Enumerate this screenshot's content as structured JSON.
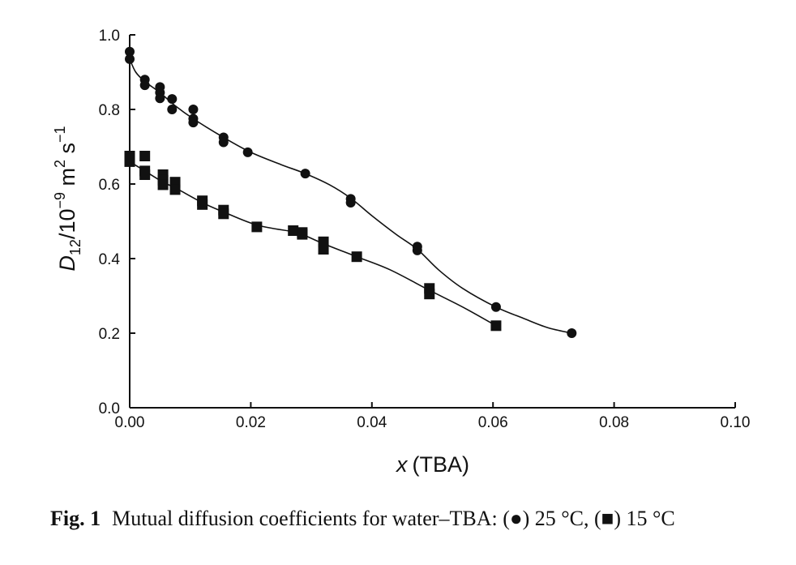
{
  "chart_data": {
    "type": "scatter",
    "xlabel_var": "x",
    "xlabel_rest": "(TBA)",
    "ylabel_var": "D",
    "ylabel_sub": "12",
    "ylabel_mid": "/10",
    "ylabel_exp1": "−9",
    "ylabel_m": " m",
    "ylabel_exp2": "2",
    "ylabel_s": " s",
    "ylabel_exp3": "−1",
    "xlim": [
      0,
      0.1
    ],
    "ylim": [
      0,
      1.0
    ],
    "x_ticks": [
      {
        "value": 0,
        "label": "0.00"
      },
      {
        "value": 0.02,
        "label": "0.02"
      },
      {
        "value": 0.04,
        "label": "0.04"
      },
      {
        "value": 0.06,
        "label": "0.06"
      },
      {
        "value": 0.08,
        "label": "0.08"
      },
      {
        "value": 0.1,
        "label": "0.10"
      }
    ],
    "y_ticks": [
      {
        "value": 0,
        "label": "0.0"
      },
      {
        "value": 0.2,
        "label": "0.2"
      },
      {
        "value": 0.4,
        "label": "0.4"
      },
      {
        "value": 0.6,
        "label": "0.6"
      },
      {
        "value": 0.8,
        "label": "0.8"
      },
      {
        "value": 1.0,
        "label": "1.0"
      }
    ],
    "grid": false,
    "series": [
      {
        "marker": "circle",
        "points": [
          [
            0.0,
            0.955
          ],
          [
            0.0,
            0.935
          ],
          [
            0.0025,
            0.88
          ],
          [
            0.0025,
            0.865
          ],
          [
            0.005,
            0.86
          ],
          [
            0.005,
            0.845
          ],
          [
            0.005,
            0.83
          ],
          [
            0.007,
            0.828
          ],
          [
            0.007,
            0.8
          ],
          [
            0.0105,
            0.8
          ],
          [
            0.0105,
            0.775
          ],
          [
            0.0105,
            0.765
          ],
          [
            0.0155,
            0.725
          ],
          [
            0.0155,
            0.712
          ],
          [
            0.0195,
            0.685
          ],
          [
            0.029,
            0.628
          ],
          [
            0.0365,
            0.56
          ],
          [
            0.0365,
            0.55
          ],
          [
            0.0475,
            0.432
          ],
          [
            0.0475,
            0.422
          ],
          [
            0.0605,
            0.27
          ],
          [
            0.073,
            0.2
          ]
        ],
        "curve": [
          [
            0.0,
            0.935
          ],
          [
            0.001,
            0.9
          ],
          [
            0.0025,
            0.875
          ],
          [
            0.005,
            0.845
          ],
          [
            0.0075,
            0.81
          ],
          [
            0.0105,
            0.775
          ],
          [
            0.0155,
            0.725
          ],
          [
            0.02,
            0.685
          ],
          [
            0.025,
            0.652
          ],
          [
            0.029,
            0.628
          ],
          [
            0.033,
            0.598
          ],
          [
            0.0365,
            0.562
          ],
          [
            0.04,
            0.515
          ],
          [
            0.044,
            0.465
          ],
          [
            0.0475,
            0.425
          ],
          [
            0.051,
            0.37
          ],
          [
            0.055,
            0.32
          ],
          [
            0.0605,
            0.27
          ],
          [
            0.065,
            0.24
          ],
          [
            0.069,
            0.215
          ],
          [
            0.073,
            0.2
          ]
        ]
      },
      {
        "marker": "square",
        "points": [
          [
            0.0,
            0.675
          ],
          [
            0.0,
            0.66
          ],
          [
            0.0025,
            0.675
          ],
          [
            0.0025,
            0.635
          ],
          [
            0.0025,
            0.625
          ],
          [
            0.0055,
            0.625
          ],
          [
            0.0055,
            0.61
          ],
          [
            0.0055,
            0.598
          ],
          [
            0.0075,
            0.605
          ],
          [
            0.0075,
            0.585
          ],
          [
            0.012,
            0.555
          ],
          [
            0.012,
            0.545
          ],
          [
            0.0155,
            0.53
          ],
          [
            0.0155,
            0.52
          ],
          [
            0.021,
            0.485
          ],
          [
            0.027,
            0.475
          ],
          [
            0.0285,
            0.47
          ],
          [
            0.0285,
            0.465
          ],
          [
            0.032,
            0.445
          ],
          [
            0.032,
            0.425
          ],
          [
            0.0375,
            0.405
          ],
          [
            0.0495,
            0.32
          ],
          [
            0.0495,
            0.305
          ],
          [
            0.0605,
            0.22
          ]
        ],
        "curve": [
          [
            0.0,
            0.66
          ],
          [
            0.0025,
            0.635
          ],
          [
            0.0055,
            0.605
          ],
          [
            0.0075,
            0.59
          ],
          [
            0.012,
            0.55
          ],
          [
            0.0155,
            0.525
          ],
          [
            0.021,
            0.49
          ],
          [
            0.027,
            0.472
          ],
          [
            0.0285,
            0.465
          ],
          [
            0.032,
            0.44
          ],
          [
            0.0375,
            0.405
          ],
          [
            0.043,
            0.37
          ],
          [
            0.0495,
            0.315
          ],
          [
            0.055,
            0.27
          ],
          [
            0.0605,
            0.22
          ]
        ]
      }
    ]
  },
  "caption": {
    "label": "Fig. 1",
    "text": "Mutual diffusion coefficients for water–TBA: (●) 25 °C, (■) 15 °C"
  }
}
